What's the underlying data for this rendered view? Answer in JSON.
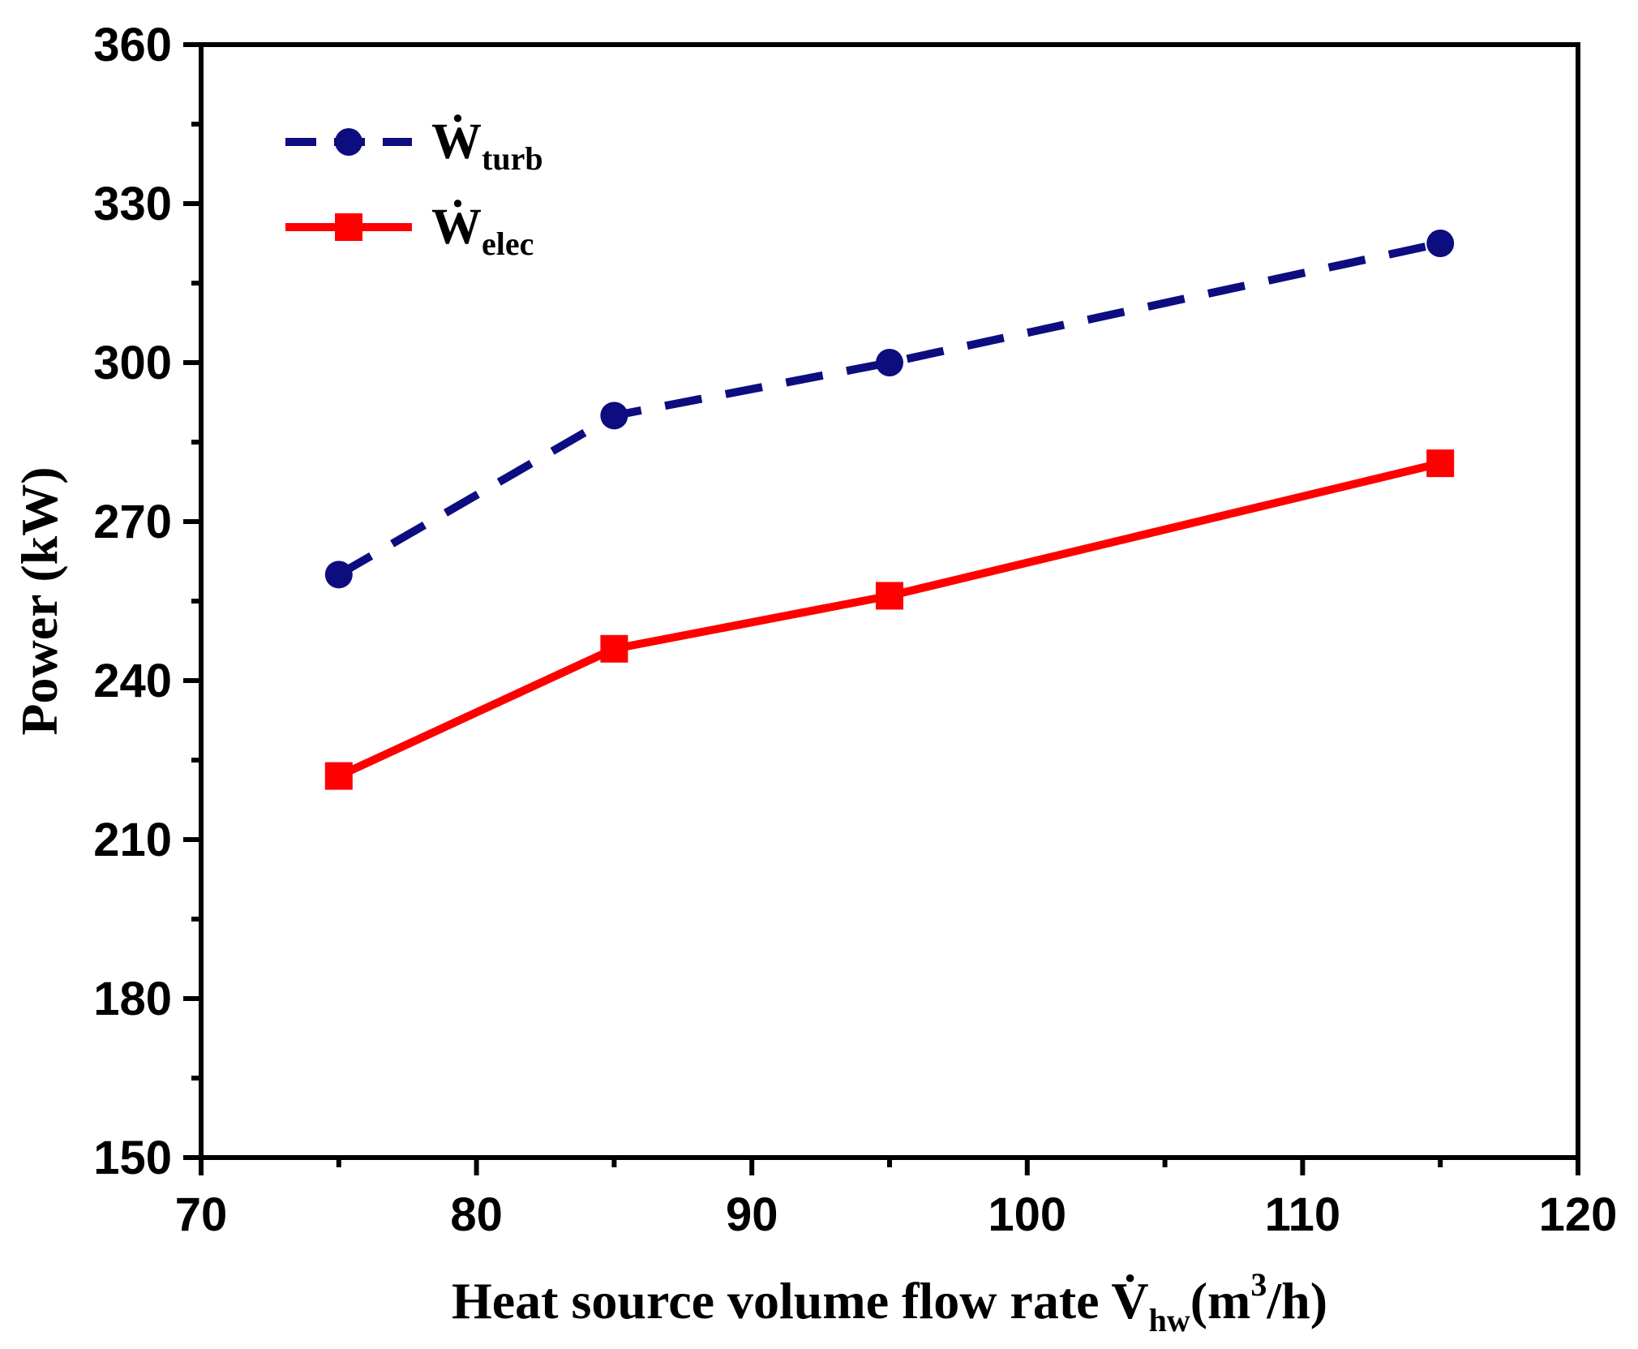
{
  "chart_data": {
    "type": "line",
    "title": "",
    "xlabel": "Heat source volume flow rate V̇hw(m3/h)",
    "xlabel_parts": {
      "main": "Heat source volume flow rate ",
      "symbol": "V̇",
      "sub": "hw",
      "paren_open": "(m",
      "sup": "3",
      "paren_close": "/h)"
    },
    "ylabel": "Power (kW)",
    "xlim": [
      70,
      120
    ],
    "ylim": [
      150,
      360
    ],
    "xticks": [
      70,
      80,
      90,
      100,
      110,
      120
    ],
    "yticks": [
      150,
      180,
      210,
      240,
      270,
      300,
      330,
      360
    ],
    "x_minor_step": 5,
    "y_minor_step": 15,
    "grid": false,
    "legend_position": "top-left",
    "x": [
      75,
      85,
      95,
      115
    ],
    "series": [
      {
        "id": "turb",
        "name": "Ẇturb",
        "symbol": "Ẇ",
        "sub": "turb",
        "values": [
          260,
          290,
          300,
          322.5
        ],
        "color": "#0d0d80",
        "line_style": "dashed",
        "marker": "circle"
      },
      {
        "id": "elec",
        "name": "Ẇelec",
        "symbol": "Ẇ",
        "sub": "elec",
        "values": [
          222,
          246,
          256,
          281
        ],
        "color": "#ff0000",
        "line_style": "solid",
        "marker": "square"
      }
    ]
  }
}
